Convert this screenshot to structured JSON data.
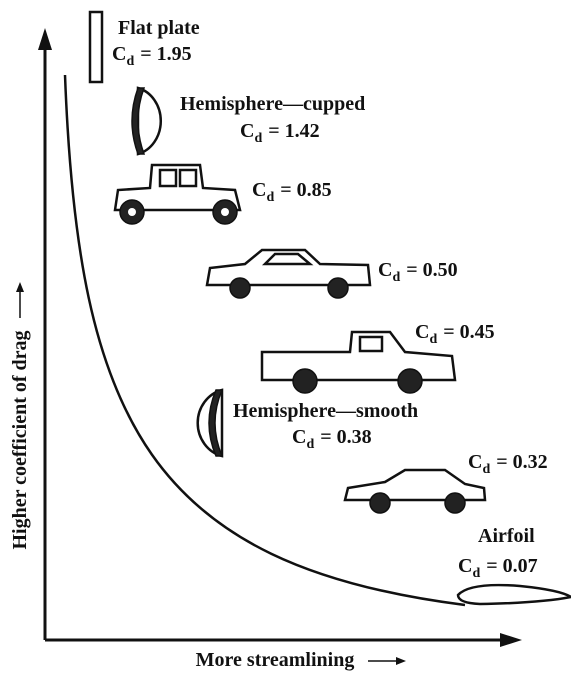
{
  "axes": {
    "y_label": "Higher coefficient of drag",
    "x_label": "More streamlining"
  },
  "items": [
    {
      "name": "Flat plate",
      "symbol": "C",
      "sub": "d",
      "cd": "= 1.95"
    },
    {
      "name": "Hemisphere—cupped",
      "symbol": "C",
      "sub": "d",
      "cd": "= 1.42"
    },
    {
      "symbol": "C",
      "sub": "d",
      "cd": "= 0.85"
    },
    {
      "symbol": "C",
      "sub": "d",
      "cd": "= 0.50"
    },
    {
      "symbol": "C",
      "sub": "d",
      "cd": "= 0.45"
    },
    {
      "name": "Hemisphere—smooth",
      "symbol": "C",
      "sub": "d",
      "cd": "= 0.38"
    },
    {
      "symbol": "C",
      "sub": "d",
      "cd": "= 0.32"
    },
    {
      "name": "Airfoil",
      "symbol": "C",
      "sub": "d",
      "cd": "= 0.07"
    }
  ]
}
